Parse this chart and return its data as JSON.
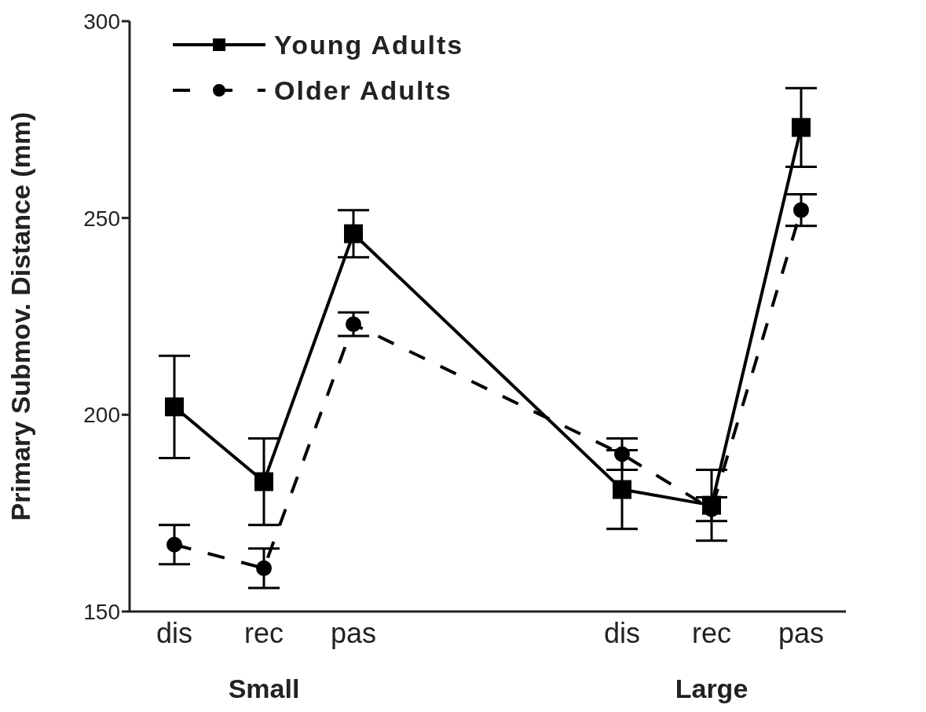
{
  "chart_data": {
    "type": "line",
    "ylabel": "Primary Submov. Distance (mm)",
    "categories": [
      "dis",
      "rec",
      "pas",
      null,
      null,
      "dis",
      "rec",
      "pas"
    ],
    "annotations": [
      "Small",
      "Large"
    ],
    "ylim": [
      150,
      300
    ],
    "yticks": [
      150,
      200,
      250,
      300
    ],
    "grid": false,
    "legend": "top left",
    "series": [
      {
        "name": "Young Adults",
        "color": "#000000",
        "marker": "square",
        "line_style": "solid",
        "values": [
          202,
          183,
          246,
          null,
          null,
          181,
          177,
          273
        ],
        "errors": [
          13,
          11,
          6,
          null,
          null,
          10,
          9,
          10
        ]
      },
      {
        "name": "Older Adults",
        "color": "#000000",
        "marker": "circle",
        "line_style": "dashed",
        "values": [
          167,
          161,
          223,
          null,
          null,
          190,
          176,
          252
        ],
        "errors": [
          5,
          5,
          3,
          null,
          null,
          4,
          3,
          4
        ]
      }
    ]
  }
}
